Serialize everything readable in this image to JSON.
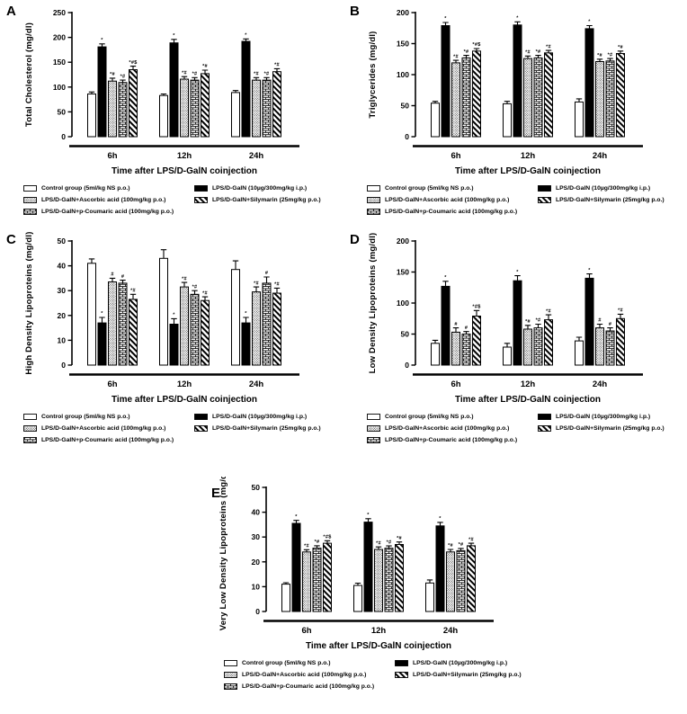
{
  "figure": {
    "background": "#ffffff",
    "ink": "#000000",
    "xlabel": "Time after LPS/D-GalN coinjection",
    "categories": [
      "6h",
      "12h",
      "24h"
    ],
    "legend": [
      {
        "label": "Control group (5ml/kg NS p.o.)",
        "pattern": "open"
      },
      {
        "label": "LPS/D-GalN (10µg/300mg/kg i.p.)",
        "pattern": "solid"
      },
      {
        "label": "LPS/D-GalN+Ascorbic acid (100mg/kg p.o.)",
        "pattern": "dots"
      },
      {
        "label": "LPS/D-GalN+Silymarin (25mg/kg p.o.)",
        "pattern": "diagonal"
      },
      {
        "label": "LPS/D-GalN+p-Coumaric acid (100mg/kg p.o.)",
        "pattern": "bricks"
      }
    ]
  },
  "chart_data": [
    {
      "panel_label": "A",
      "type": "bar",
      "ylabel": "Total Cholesterol (mg/dl)",
      "xlabel": "Time after LPS/D-GalN coinjection",
      "categories": [
        "6h",
        "12h",
        "24h"
      ],
      "ylim": [
        0,
        250
      ],
      "yticks": [
        0,
        50,
        100,
        150,
        200,
        250
      ],
      "series": [
        {
          "name": "Control group (5ml/kg NS p.o.)",
          "pattern": "open",
          "values": [
            86,
            83,
            89
          ],
          "errors": [
            4,
            3,
            4
          ],
          "sig": [
            "",
            "",
            ""
          ]
        },
        {
          "name": "LPS/D-GalN (10µg/300mg/kg i.p.)",
          "pattern": "solid",
          "values": [
            181,
            189,
            192
          ],
          "errors": [
            6,
            7,
            5
          ],
          "sig": [
            "*",
            "*",
            "*"
          ]
        },
        {
          "name": "LPS/D-GalN+Ascorbic acid (100mg/kg p.o.)",
          "pattern": "dots",
          "values": [
            112,
            116,
            114
          ],
          "errors": [
            6,
            5,
            5
          ],
          "sig": [
            "*#",
            "*#",
            "*#"
          ]
        },
        {
          "name": "LPS/D-GalN+p-Coumaric acid (100mg/kg p.o.)",
          "pattern": "bricks",
          "values": [
            109,
            114,
            114
          ],
          "errors": [
            5,
            5,
            5
          ],
          "sig": [
            "*#",
            "*#",
            "*#"
          ]
        },
        {
          "name": "LPS/D-GalN+Silymarin (25mg/kg p.o.)",
          "pattern": "diagonal",
          "values": [
            135,
            127,
            131
          ],
          "errors": [
            7,
            7,
            6
          ],
          "sig": [
            "*#$",
            "*#",
            "*#"
          ]
        }
      ]
    },
    {
      "panel_label": "B",
      "type": "bar",
      "ylabel": "Triglycerides (mg/dl)",
      "xlabel": "Time after LPS/D-GalN coinjection",
      "categories": [
        "6h",
        "12h",
        "24h"
      ],
      "ylim": [
        0,
        200
      ],
      "yticks": [
        0,
        50,
        100,
        150,
        200
      ],
      "series": [
        {
          "name": "Control group (5ml/kg NS p.o.)",
          "pattern": "open",
          "values": [
            54,
            53,
            56
          ],
          "errors": [
            3,
            4,
            5
          ],
          "sig": [
            "",
            "",
            ""
          ]
        },
        {
          "name": "LPS/D-GalN (10µg/300mg/kg i.p.)",
          "pattern": "solid",
          "values": [
            179,
            180,
            174
          ],
          "errors": [
            5,
            5,
            5
          ],
          "sig": [
            "*",
            "*",
            "*"
          ]
        },
        {
          "name": "LPS/D-GalN+Ascorbic acid (100mg/kg p.o.)",
          "pattern": "dots",
          "values": [
            119,
            126,
            121
          ],
          "errors": [
            4,
            4,
            4
          ],
          "sig": [
            "*#",
            "*#",
            "*#"
          ]
        },
        {
          "name": "LPS/D-GalN+p-Coumaric acid (100mg/kg p.o.)",
          "pattern": "bricks",
          "values": [
            127,
            127,
            122
          ],
          "errors": [
            4,
            4,
            4
          ],
          "sig": [
            "*#",
            "*#",
            "*#"
          ]
        },
        {
          "name": "LPS/D-GalN+Silymarin (25mg/kg p.o.)",
          "pattern": "diagonal",
          "values": [
            138,
            135,
            134
          ],
          "errors": [
            4,
            4,
            4
          ],
          "sig": [
            "*#$",
            "*#",
            "*#"
          ]
        }
      ]
    },
    {
      "panel_label": "C",
      "type": "bar",
      "ylabel": "High Density Lipoproteins (mg/dl)",
      "xlabel": "Time after LPS/D-GalN coinjection",
      "categories": [
        "6h",
        "12h",
        "24h"
      ],
      "ylim": [
        0,
        50
      ],
      "yticks": [
        0,
        10,
        20,
        30,
        40,
        50
      ],
      "series": [
        {
          "name": "Control group (5ml/kg NS p.o.)",
          "pattern": "open",
          "values": [
            41,
            43,
            38.5
          ],
          "errors": [
            1.8,
            3.5,
            3.5
          ],
          "sig": [
            "",
            "",
            ""
          ]
        },
        {
          "name": "LPS/D-GalN (10µg/300mg/kg i.p.)",
          "pattern": "solid",
          "values": [
            17,
            16.5,
            17
          ],
          "errors": [
            2.2,
            2.2,
            2.2
          ],
          "sig": [
            "*",
            "*",
            "*"
          ]
        },
        {
          "name": "LPS/D-GalN+Ascorbic acid (100mg/kg p.o.)",
          "pattern": "dots",
          "values": [
            33.5,
            31.5,
            29.5
          ],
          "errors": [
            1.5,
            1.8,
            2
          ],
          "sig": [
            "#",
            "*#",
            "*#"
          ]
        },
        {
          "name": "LPS/D-GalN+p-Coumaric acid (100mg/kg p.o.)",
          "pattern": "bricks",
          "values": [
            33,
            28.5,
            33
          ],
          "errors": [
            1.2,
            1.5,
            2.5
          ],
          "sig": [
            "#",
            "*#",
            "#"
          ]
        },
        {
          "name": "LPS/D-GalN+Silymarin (25mg/kg p.o.)",
          "pattern": "diagonal",
          "values": [
            26.5,
            26,
            29
          ],
          "errors": [
            2,
            1.5,
            2
          ],
          "sig": [
            "*#",
            "*#",
            "*#"
          ]
        }
      ]
    },
    {
      "panel_label": "D",
      "type": "bar",
      "ylabel": "Low Density Lipoproteins (mg/dl)",
      "xlabel": "Time after LPS/D-GalN coinjection",
      "categories": [
        "6h",
        "12h",
        "24h"
      ],
      "ylim": [
        0,
        200
      ],
      "yticks": [
        0,
        50,
        100,
        150,
        200
      ],
      "series": [
        {
          "name": "Control group (5ml/kg NS p.o.)",
          "pattern": "open",
          "values": [
            35,
            29,
            39
          ],
          "errors": [
            5,
            6,
            6
          ],
          "sig": [
            "",
            "",
            ""
          ]
        },
        {
          "name": "LPS/D-GalN (10µg/300mg/kg i.p.)",
          "pattern": "solid",
          "values": [
            127,
            136,
            140
          ],
          "errors": [
            8,
            8,
            7
          ],
          "sig": [
            "*",
            "*",
            "*"
          ]
        },
        {
          "name": "LPS/D-GalN+Ascorbic acid (100mg/kg p.o.)",
          "pattern": "dots",
          "values": [
            53,
            58,
            60
          ],
          "errors": [
            7,
            6,
            6
          ],
          "sig": [
            "#",
            "*#",
            "#"
          ]
        },
        {
          "name": "LPS/D-GalN+p-Coumaric acid (100mg/kg p.o.)",
          "pattern": "bricks",
          "values": [
            50,
            60,
            55
          ],
          "errors": [
            4,
            6,
            5
          ],
          "sig": [
            "#",
            "*#",
            "#"
          ]
        },
        {
          "name": "LPS/D-GalN+Silymarin (25mg/kg p.o.)",
          "pattern": "diagonal",
          "values": [
            79,
            73,
            75
          ],
          "errors": [
            9,
            8,
            7
          ],
          "sig": [
            "*#$",
            "*#",
            "*#"
          ]
        }
      ]
    },
    {
      "panel_label": "E",
      "type": "bar",
      "ylabel": "Very Low Density Lipoproteins (mg/dl)",
      "xlabel": "Time after LPS/D-GalN coinjection",
      "categories": [
        "6h",
        "12h",
        "24h"
      ],
      "ylim": [
        0,
        50
      ],
      "yticks": [
        0,
        10,
        20,
        30,
        40,
        50
      ],
      "series": [
        {
          "name": "Control group (5ml/kg NS p.o.)",
          "pattern": "open",
          "values": [
            11,
            10.5,
            11.5
          ],
          "errors": [
            0.6,
            0.9,
            1.2
          ],
          "sig": [
            "",
            "",
            ""
          ]
        },
        {
          "name": "LPS/D-GalN (10µg/300mg/kg i.p.)",
          "pattern": "solid",
          "values": [
            35.5,
            36,
            34.5
          ],
          "errors": [
            1.2,
            1.4,
            1.4
          ],
          "sig": [
            "*",
            "*",
            "*"
          ]
        },
        {
          "name": "LPS/D-GalN+Ascorbic acid (100mg/kg p.o.)",
          "pattern": "dots",
          "values": [
            24,
            25,
            24
          ],
          "errors": [
            0.9,
            1,
            1
          ],
          "sig": [
            "*#",
            "*#",
            "*#"
          ]
        },
        {
          "name": "LPS/D-GalN+p-Coumaric acid (100mg/kg p.o.)",
          "pattern": "bricks",
          "values": [
            25.5,
            25.5,
            24.5
          ],
          "errors": [
            1,
            0.9,
            0.9
          ],
          "sig": [
            "*#",
            "*#",
            "*#"
          ]
        },
        {
          "name": "LPS/D-GalN+Silymarin (25mg/kg p.o.)",
          "pattern": "diagonal",
          "values": [
            27.5,
            27,
            26.5
          ],
          "errors": [
            1,
            1,
            1
          ],
          "sig": [
            "*#$",
            "*#",
            "*#"
          ]
        }
      ]
    }
  ]
}
